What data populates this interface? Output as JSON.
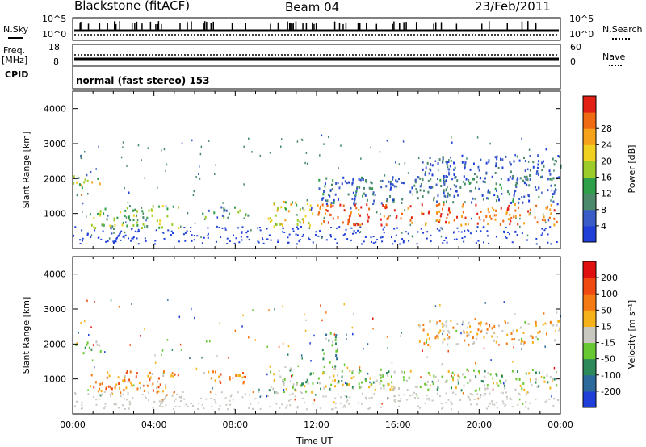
{
  "header": {
    "station": "Blackstone (fitACF)",
    "beam": "Beam 04",
    "date": "23/Feb/2011"
  },
  "strip_labels": {
    "nsky": "N.Sky",
    "nsky_top": "10^5",
    "nsky_bottom": "10^0",
    "nsearch": "N.Search",
    "nsearch_top": "10^5",
    "nsearch_bottom": "10^0",
    "freq": "Freq.",
    "freq_unit": "[MHz]",
    "freq_top": "18",
    "freq_bottom": "8",
    "nave_top": "60",
    "nave_bottom": "0",
    "nave": "Nave",
    "cpid": "CPID",
    "mode": "normal (fast stereo) 153"
  },
  "chart_data": [
    {
      "type": "heatmap",
      "title": "",
      "xlabel": "Time UT",
      "ylabel": "Slant Range [km]",
      "xlim": [
        "00:00",
        "24:00"
      ],
      "ylim": [
        0,
        4500
      ],
      "x_ticks": [
        "00:00",
        "04:00",
        "08:00",
        "12:00",
        "16:00",
        "20:00",
        "00:00"
      ],
      "y_ticks": [
        1000,
        2000,
        3000,
        4000
      ],
      "colorbar": {
        "label": "Power [dB]",
        "ticks": [
          4,
          8,
          12,
          16,
          20,
          24,
          28
        ],
        "colors": [
          "#1f3fd8",
          "#3a5cc8",
          "#4a8a6a",
          "#2fa04a",
          "#9ccc2a",
          "#f0d020",
          "#f6a21a",
          "#f06a14",
          "#e22014"
        ]
      },
      "regions": [
        {
          "t0": 0.0,
          "t1": 1.4,
          "r0": 1750,
          "r1": 2100,
          "level": 0.55
        },
        {
          "t0": 0.0,
          "t1": 0.5,
          "r0": 1550,
          "r1": 1700,
          "level": 0.9
        },
        {
          "t0": 0.8,
          "t1": 5.2,
          "r0": 600,
          "r1": 1250,
          "level": 0.45
        },
        {
          "t0": 6.3,
          "t1": 8.6,
          "r0": 900,
          "r1": 1250,
          "level": 0.35
        },
        {
          "t0": 9.6,
          "t1": 11.8,
          "r0": 650,
          "r1": 1400,
          "level": 0.55
        },
        {
          "t0": 12.0,
          "t1": 23.8,
          "r0": 700,
          "r1": 1300,
          "level": 0.85
        },
        {
          "t0": 12.0,
          "t1": 24.0,
          "r0": 1300,
          "r1": 2100,
          "level": 0.2
        },
        {
          "t0": 17.0,
          "t1": 24.0,
          "r0": 2000,
          "r1": 2700,
          "level": 0.15
        }
      ]
    },
    {
      "type": "heatmap",
      "title": "",
      "xlabel": "Time UT",
      "ylabel": "Slant Range [km]",
      "xlim": [
        "00:00",
        "24:00"
      ],
      "ylim": [
        0,
        4500
      ],
      "x_ticks": [
        "00:00",
        "04:00",
        "08:00",
        "12:00",
        "16:00",
        "20:00",
        "00:00"
      ],
      "y_ticks": [
        1000,
        2000,
        3000,
        4000
      ],
      "colorbar": {
        "label": "Velocity [m s⁻¹]",
        "ticks": [
          200,
          100,
          50,
          15,
          -15,
          -50,
          -100,
          -200
        ],
        "colors": [
          "#1f3fd8",
          "#2c6a9c",
          "#2c8a5a",
          "#68c832",
          "#c8c8c0",
          "#f6b21a",
          "#f67a14",
          "#f04a10",
          "#e01010"
        ]
      },
      "regions": [
        {
          "t0": 0.0,
          "t1": 1.4,
          "r0": 1750,
          "r1": 2100,
          "level": 0.45
        },
        {
          "t0": 0.8,
          "t1": 5.2,
          "r0": 600,
          "r1": 1250,
          "level": 0.7
        },
        {
          "t0": 6.3,
          "t1": 8.6,
          "r0": 900,
          "r1": 1250,
          "level": 0.7
        },
        {
          "t0": 9.6,
          "t1": 11.8,
          "r0": 650,
          "r1": 1400,
          "level": 0.45
        },
        {
          "t0": 12.0,
          "t1": 23.8,
          "r0": 700,
          "r1": 1300,
          "level": 0.45
        },
        {
          "t0": 12.2,
          "t1": 13.0,
          "r0": 1300,
          "r1": 2400,
          "level": 0.3
        },
        {
          "t0": 17.0,
          "t1": 24.0,
          "r0": 2000,
          "r1": 2700,
          "level": 0.6
        }
      ]
    }
  ]
}
